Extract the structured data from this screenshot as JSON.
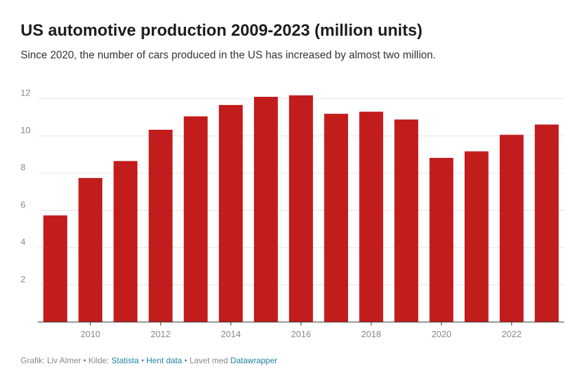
{
  "title": "US automotive production 2009-2023 (million units)",
  "subtitle": "Since 2020, the number of cars produced in the US has increased by almost two million.",
  "chart_data": {
    "type": "bar",
    "categories": [
      "2009",
      "2010",
      "2011",
      "2012",
      "2013",
      "2014",
      "2015",
      "2016",
      "2017",
      "2018",
      "2019",
      "2020",
      "2021",
      "2022",
      "2023"
    ],
    "values": [
      5.73,
      7.74,
      8.65,
      10.33,
      11.05,
      11.66,
      12.1,
      12.18,
      11.19,
      11.3,
      10.88,
      8.82,
      9.17,
      10.06,
      10.61
    ],
    "ylim": [
      0,
      12.8
    ],
    "yticks": [
      2,
      4,
      6,
      8,
      10,
      12
    ],
    "ytick_labels": [
      "2",
      "4",
      "6",
      "8",
      "10",
      "12"
    ],
    "xtick_labels": [
      "2010",
      "2012",
      "2014",
      "2016",
      "2018",
      "2020",
      "2022"
    ],
    "xlabel": "",
    "ylabel": "",
    "grid": true,
    "bar_color": "#c21c1c"
  },
  "footer": {
    "prefix": "Grafik: Liv Almer • Kilde: ",
    "source_link": "Statista",
    "sep1": " • ",
    "data_link": "Hent data",
    "sep2": " • Lavet med ",
    "tool_link": "Datawrapper"
  },
  "colors": {
    "bar": "#c21c1c",
    "link": "#1d81a2",
    "grid": "#e6e6e6"
  }
}
